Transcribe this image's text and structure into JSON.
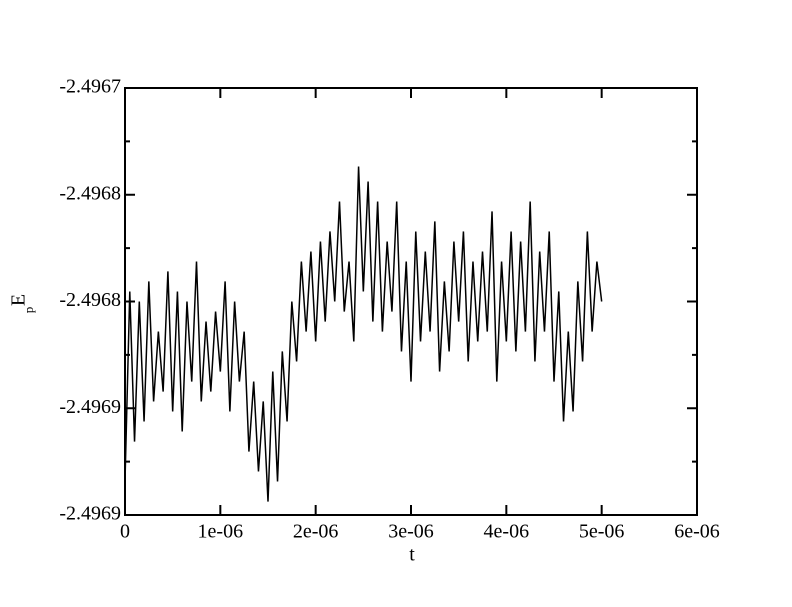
{
  "chart_data": {
    "type": "line",
    "xlabel": "t",
    "ylabel": "E",
    "ylabel_sub": "p",
    "xlim": [
      0,
      6e-06
    ],
    "xticks": [
      0,
      {
        "value": 1e-06,
        "label": "1e-06"
      },
      {
        "value": 2e-06,
        "label": "2e-06"
      },
      {
        "value": 3e-06,
        "label": "3e-06"
      },
      {
        "value": 4e-06,
        "label": "4e-06"
      },
      {
        "value": 5e-06,
        "label": "5e-06"
      },
      {
        "value": 6e-06,
        "label": "6e-06"
      }
    ],
    "ylim": [
      -2.4969,
      -2.4967
    ],
    "yticks": [
      -2.4969,
      {
        "value": -2.49685,
        "label": "-2.4969"
      },
      -2.4968,
      {
        "value": -2.49675,
        "label": "-2.4968"
      },
      -2.4967
    ],
    "yminorticks": [
      -2.496875,
      -2.496825,
      -2.496775,
      -2.496725
    ],
    "grid": false,
    "series": [
      {
        "color": "#000000",
        "x": [
          0,
          5e-08,
          1e-07,
          1.5e-07,
          2e-07,
          2.5e-07,
          3e-07,
          3.5e-07,
          4e-07,
          4.5e-07,
          5e-07,
          5.5e-07,
          6e-07,
          6.5e-07,
          7e-07,
          7.5e-07,
          8e-07,
          8.5e-07,
          9e-07,
          9.5e-07,
          1e-06,
          1.05e-06,
          1.1e-06,
          1.15e-06,
          1.2e-06,
          1.25e-06,
          1.3e-06,
          1.35e-06,
          1.4e-06,
          1.45e-06,
          1.5e-06,
          1.55e-06,
          1.6e-06,
          1.65e-06,
          1.7e-06,
          1.75e-06,
          1.8e-06,
          1.85e-06,
          1.9e-06,
          1.95e-06,
          2e-06,
          2.05e-06,
          2.1e-06,
          2.15e-06,
          2.2e-06,
          2.25e-06,
          2.3e-06,
          2.35e-06,
          2.4e-06,
          2.45e-06,
          2.5e-06,
          2.55e-06,
          2.6e-06,
          2.65e-06,
          2.7e-06,
          2.75e-06,
          2.8e-06,
          2.85e-06,
          2.9e-06,
          2.95e-06,
          3e-06,
          3.05e-06,
          3.1e-06,
          3.15e-06,
          3.2e-06,
          3.25e-06,
          3.3e-06,
          3.35e-06,
          3.4e-06,
          3.45e-06,
          3.5e-06,
          3.55e-06,
          3.6e-06,
          3.65e-06,
          3.7e-06,
          3.75e-06,
          3.8e-06,
          3.85e-06,
          3.9e-06,
          3.95e-06,
          4e-06,
          4.05e-06,
          4.1e-06,
          4.15e-06,
          4.2e-06,
          4.25e-06,
          4.3e-06,
          4.35e-06,
          4.4e-06,
          4.45e-06,
          4.5e-06,
          4.55e-06,
          4.6e-06,
          4.65e-06,
          4.7e-06,
          4.75e-06,
          4.8e-06,
          4.85e-06,
          4.9e-06,
          4.95e-06,
          5e-06
        ],
        "values": [
          -2.4968843,
          -2.4967953,
          -2.4968656,
          -2.4968,
          -2.4968562,
          -2.4967906,
          -2.4968468,
          -2.4968141,
          -2.4968422,
          -2.4967859,
          -2.4968515,
          -2.4967953,
          -2.4968609,
          -2.4968,
          -2.4968375,
          -2.4967813,
          -2.4968468,
          -2.4968094,
          -2.4968422,
          -2.4968047,
          -2.4968328,
          -2.4967906,
          -2.4968515,
          -2.4968,
          -2.4968375,
          -2.4968141,
          -2.4968703,
          -2.4968375,
          -2.4968796,
          -2.4968468,
          -2.4968937,
          -2.4968328,
          -2.4968843,
          -2.4968234,
          -2.4968562,
          -2.4968,
          -2.4968281,
          -2.4967813,
          -2.4968141,
          -2.4967766,
          -2.4968187,
          -2.4967719,
          -2.4968094,
          -2.4967672,
          -2.4968,
          -2.4967532,
          -2.4968047,
          -2.4967813,
          -2.4968187,
          -2.4967368,
          -2.4967953,
          -2.4967438,
          -2.4968094,
          -2.4967532,
          -2.4968141,
          -2.4967719,
          -2.4968047,
          -2.4967532,
          -2.4968234,
          -2.4967813,
          -2.4968375,
          -2.4967672,
          -2.4968187,
          -2.4967766,
          -2.4968141,
          -2.4967625,
          -2.4968328,
          -2.4967906,
          -2.4968234,
          -2.4967719,
          -2.4968094,
          -2.4967672,
          -2.4968281,
          -2.4967813,
          -2.4968187,
          -2.4967766,
          -2.4968141,
          -2.4967578,
          -2.4968375,
          -2.4967813,
          -2.4968187,
          -2.4967672,
          -2.4968234,
          -2.4967719,
          -2.4968141,
          -2.4967532,
          -2.4968281,
          -2.4967766,
          -2.4968141,
          -2.4967672,
          -2.4968375,
          -2.4967953,
          -2.4968562,
          -2.4968141,
          -2.4968515,
          -2.4967906,
          -2.4968281,
          -2.4967672,
          -2.4968141,
          -2.4967813,
          -2.4968
        ]
      }
    ]
  }
}
